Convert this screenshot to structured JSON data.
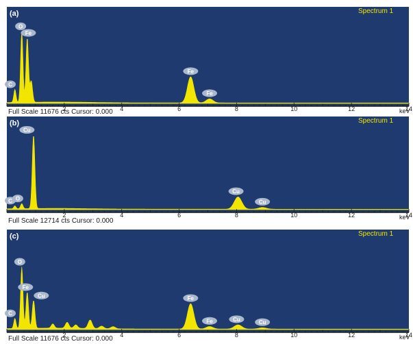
{
  "colors": {
    "panel_bg": "#1f3a6e",
    "spectrum": "#f2e600",
    "peak_label_bg": "#a9b8cc",
    "axis": "#1a1a1a",
    "page_bg": "#ffffff"
  },
  "chart_data": [
    {
      "type": "area",
      "panel_label": "(a)",
      "title": "Spectrum 1",
      "footer": "Full Scale 11676 cts Cursor: 0.000",
      "xlabel": "keV",
      "xlim": [
        0,
        14
      ],
      "ylim": [
        0,
        11676
      ],
      "x_ticks": [
        2,
        4,
        6,
        8,
        10,
        12,
        14
      ],
      "peaks": [
        {
          "element": "C",
          "energy": 0.28,
          "counts": 1600
        },
        {
          "element": "O",
          "energy": 0.52,
          "counts": 8700
        },
        {
          "element": "Fe",
          "energy": 0.71,
          "counts": 7900
        },
        {
          "element": "Fe",
          "energy": 6.4,
          "counts": 3200
        },
        {
          "element": "Fe",
          "energy": 7.06,
          "counts": 500
        }
      ],
      "extra_peaks": [
        {
          "energy": 0.85,
          "counts": 2600
        }
      ],
      "labels": [
        {
          "text": "C",
          "energy": 0.1
        },
        {
          "text": "O",
          "energy": 0.48
        },
        {
          "text": "Fe",
          "energy": 0.75
        },
        {
          "text": "Fe",
          "energy": 6.4
        },
        {
          "text": "Fe",
          "energy": 7.06
        }
      ]
    },
    {
      "type": "area",
      "panel_label": "(b)",
      "title": "Spectrum 1",
      "footer": "Full Scale 12714 cts Cursor: 0.000",
      "xlabel": "keV",
      "xlim": [
        0,
        14
      ],
      "ylim": [
        0,
        12714
      ],
      "x_ticks": [
        2,
        4,
        6,
        8,
        10,
        12,
        14
      ],
      "peaks": [
        {
          "element": "C",
          "energy": 0.28,
          "counts": 400
        },
        {
          "element": "O",
          "energy": 0.52,
          "counts": 700
        },
        {
          "element": "Cu",
          "energy": 0.93,
          "counts": 10200
        },
        {
          "element": "Cu",
          "energy": 8.05,
          "counts": 1700
        },
        {
          "element": "Cu",
          "energy": 8.9,
          "counts": 250
        }
      ],
      "extra_peaks": [],
      "labels": [
        {
          "text": "C",
          "energy": 0.05
        },
        {
          "text": "O",
          "energy": 0.38
        },
        {
          "text": "Cu",
          "energy": 0.7
        },
        {
          "text": "Cu",
          "energy": 7.98
        },
        {
          "text": "Cu",
          "energy": 8.9
        }
      ]
    },
    {
      "type": "area",
      "panel_label": "(c)",
      "title": "Spectrum 1",
      "footer": "Full Scale 11676 cts Cursor: 0.000",
      "xlabel": "keV",
      "xlim": [
        0,
        14
      ],
      "ylim": [
        0,
        11676
      ],
      "x_ticks": [
        2,
        4,
        6,
        8,
        10,
        12,
        14
      ],
      "peaks": [
        {
          "element": "C",
          "energy": 0.28,
          "counts": 1200
        },
        {
          "element": "O",
          "energy": 0.52,
          "counts": 7300
        },
        {
          "element": "Fe",
          "energy": 0.71,
          "counts": 4300
        },
        {
          "element": "Cu",
          "energy": 0.93,
          "counts": 3300
        },
        {
          "element": "Fe",
          "energy": 6.4,
          "counts": 3000
        },
        {
          "element": "Fe",
          "energy": 7.06,
          "counts": 300
        },
        {
          "element": "Cu",
          "energy": 8.05,
          "counts": 500
        },
        {
          "element": "Cu",
          "energy": 8.9,
          "counts": 150
        }
      ],
      "extra_peaks": [
        {
          "energy": 1.6,
          "counts": 500
        },
        {
          "energy": 2.1,
          "counts": 700
        },
        {
          "energy": 2.4,
          "counts": 400
        },
        {
          "energy": 2.9,
          "counts": 1000
        },
        {
          "energy": 3.3,
          "counts": 300
        },
        {
          "energy": 3.7,
          "counts": 250
        }
      ],
      "labels": [
        {
          "text": "C",
          "energy": 0.05
        },
        {
          "text": "O",
          "energy": 0.45
        },
        {
          "text": "Fe",
          "energy": 0.65
        },
        {
          "text": "Cu",
          "energy": 1.2
        },
        {
          "text": "Fe",
          "energy": 6.4
        },
        {
          "text": "Fe",
          "energy": 7.06
        },
        {
          "text": "Cu",
          "energy": 8.0
        },
        {
          "text": "Cu",
          "energy": 8.9
        }
      ]
    }
  ]
}
